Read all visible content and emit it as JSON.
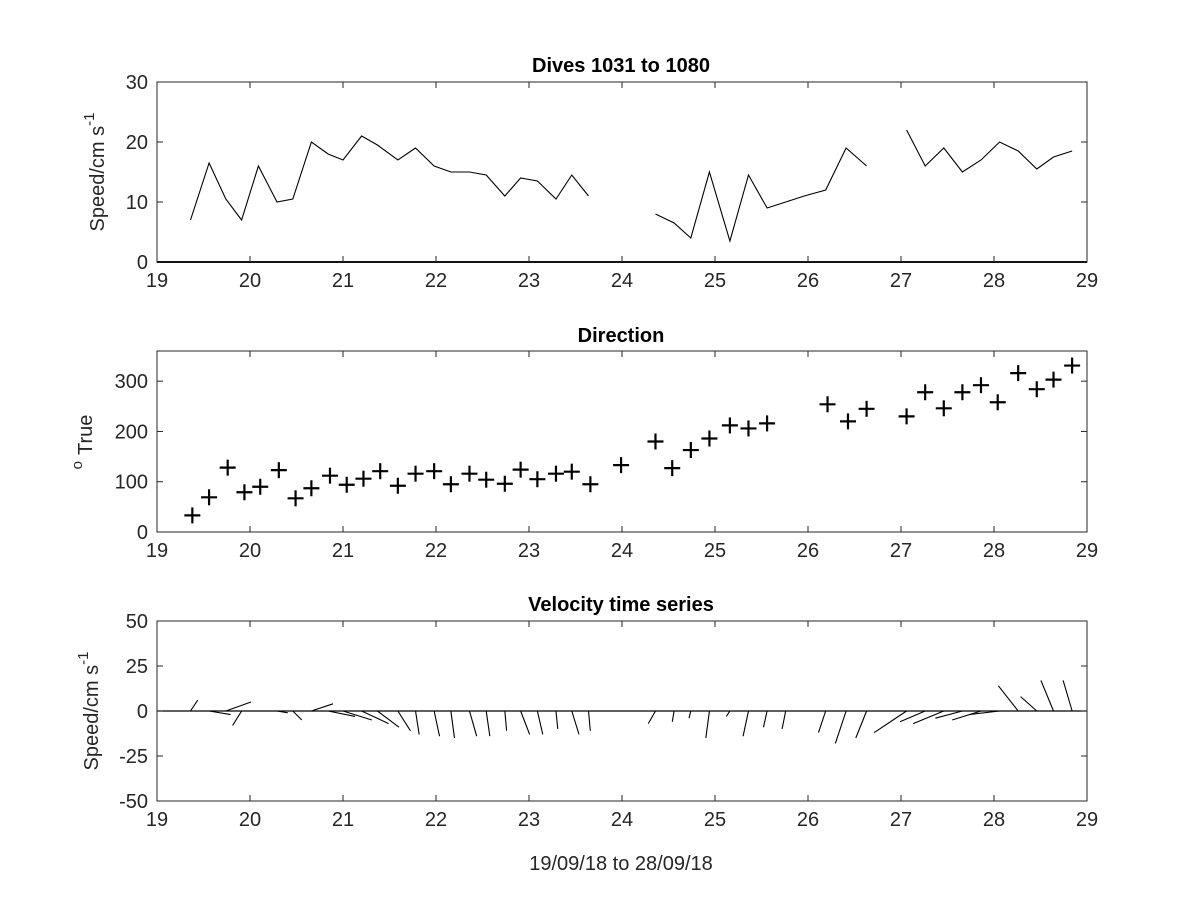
{
  "chart_data": [
    {
      "id": "speed",
      "type": "line",
      "title": "Dives 1031 to 1080",
      "xlabel": "",
      "ylabel": "Speed/cm s",
      "ylabel_sup": "-1",
      "xlim": [
        19,
        29
      ],
      "ylim": [
        0,
        30
      ],
      "xticks": [
        "19",
        "20",
        "21",
        "22",
        "23",
        "24",
        "25",
        "26",
        "27",
        "28",
        "29"
      ],
      "yticks": [
        "0",
        "10",
        "20",
        "30"
      ],
      "zero_line": true,
      "segments": [
        [
          [
            19.36,
            7
          ],
          [
            19.56,
            16.5
          ],
          [
            19.74,
            10.5
          ],
          [
            19.91,
            7
          ],
          [
            20.09,
            16
          ],
          [
            20.29,
            10
          ],
          [
            20.46,
            10.5
          ],
          [
            20.66,
            20
          ],
          [
            20.84,
            18
          ],
          [
            21.0,
            17
          ],
          [
            21.2,
            21
          ],
          [
            21.37,
            19.5
          ],
          [
            21.59,
            17
          ],
          [
            21.78,
            19
          ],
          [
            21.98,
            16
          ],
          [
            22.16,
            15
          ],
          [
            22.36,
            15
          ],
          [
            22.54,
            14.5
          ],
          [
            22.74,
            11
          ],
          [
            22.91,
            14
          ],
          [
            23.09,
            13.5
          ],
          [
            23.29,
            10.5
          ],
          [
            23.46,
            14.5
          ],
          [
            23.64,
            11
          ]
        ],
        [
          [
            24.36,
            8
          ],
          [
            24.56,
            6.5
          ],
          [
            24.74,
            4
          ],
          [
            24.94,
            15
          ],
          [
            25.16,
            3.5
          ],
          [
            25.36,
            14.5
          ],
          [
            25.56,
            9
          ],
          [
            25.76,
            10
          ],
          [
            25.96,
            11
          ],
          [
            26.19,
            12
          ],
          [
            26.41,
            19
          ],
          [
            26.63,
            16
          ]
        ],
        [
          [
            27.06,
            22
          ],
          [
            27.26,
            16
          ],
          [
            27.46,
            19
          ],
          [
            27.66,
            15
          ],
          [
            27.86,
            17
          ],
          [
            28.06,
            20
          ],
          [
            28.26,
            18.5
          ],
          [
            28.46,
            15.5
          ],
          [
            28.64,
            17.5
          ],
          [
            28.84,
            18.5
          ]
        ]
      ]
    },
    {
      "id": "direction",
      "type": "scatter",
      "title": "Direction",
      "xlabel": "",
      "ylabel": "True",
      "ylabel_sup": "o",
      "xlim": [
        19,
        29
      ],
      "ylim": [
        0,
        360
      ],
      "xticks": [
        "19",
        "20",
        "21",
        "22",
        "23",
        "24",
        "25",
        "26",
        "27",
        "28",
        "29"
      ],
      "yticks": [
        "0",
        "100",
        "200",
        "300"
      ],
      "points": [
        [
          19.38,
          33
        ],
        [
          19.56,
          69
        ],
        [
          19.76,
          128
        ],
        [
          19.94,
          79
        ],
        [
          20.11,
          90
        ],
        [
          20.31,
          123
        ],
        [
          20.49,
          67
        ],
        [
          20.66,
          87
        ],
        [
          20.86,
          112
        ],
        [
          21.04,
          94
        ],
        [
          21.22,
          106
        ],
        [
          21.4,
          121
        ],
        [
          21.59,
          92
        ],
        [
          21.78,
          116
        ],
        [
          21.98,
          121
        ],
        [
          22.16,
          95
        ],
        [
          22.36,
          116
        ],
        [
          22.54,
          104
        ],
        [
          22.74,
          96
        ],
        [
          22.91,
          124
        ],
        [
          23.09,
          105
        ],
        [
          23.29,
          116
        ],
        [
          23.46,
          120
        ],
        [
          23.66,
          95
        ],
        [
          23.99,
          133
        ],
        [
          24.36,
          180
        ],
        [
          24.54,
          127
        ],
        [
          24.74,
          163
        ],
        [
          24.94,
          186
        ],
        [
          25.16,
          212
        ],
        [
          25.36,
          206
        ],
        [
          25.56,
          216
        ],
        [
          26.21,
          254
        ],
        [
          26.43,
          220
        ],
        [
          26.63,
          245
        ],
        [
          27.06,
          230
        ],
        [
          27.26,
          278
        ],
        [
          27.46,
          246
        ],
        [
          27.66,
          278
        ],
        [
          27.86,
          292
        ],
        [
          28.04,
          258
        ],
        [
          28.26,
          316
        ],
        [
          28.46,
          284
        ],
        [
          28.64,
          303
        ],
        [
          28.84,
          331
        ]
      ]
    },
    {
      "id": "velocity",
      "type": "line",
      "subtype": "stick",
      "title": "Velocity time series",
      "xlabel": "19/09/18 to 28/09/18",
      "ylabel": "Speed/cm s",
      "ylabel_sup": "-1",
      "xlim": [
        19,
        29
      ],
      "ylim": [
        -50,
        50
      ],
      "xticks": [
        "19",
        "20",
        "21",
        "22",
        "23",
        "24",
        "25",
        "26",
        "27",
        "28",
        "29"
      ],
      "yticks": [
        "-50",
        "-25",
        "0",
        "25",
        "50"
      ],
      "zero_line": true,
      "sticks": [
        [
          19.36,
          4,
          6
        ],
        [
          19.56,
          12,
          -2
        ],
        [
          19.74,
          14,
          5
        ],
        [
          19.91,
          -5,
          -8
        ],
        [
          20.09,
          14,
          0
        ],
        [
          20.29,
          6,
          -1
        ],
        [
          20.46,
          5,
          -5
        ],
        [
          20.66,
          12,
          4
        ],
        [
          20.84,
          15,
          -3
        ],
        [
          21.0,
          16,
          -5
        ],
        [
          21.2,
          15,
          -7
        ],
        [
          21.37,
          12,
          -9
        ],
        [
          21.59,
          7,
          -11
        ],
        [
          21.78,
          2,
          -13
        ],
        [
          21.98,
          3,
          -14
        ],
        [
          22.16,
          2,
          -15
        ],
        [
          22.36,
          4,
          -14
        ],
        [
          22.54,
          2,
          -14
        ],
        [
          22.74,
          1,
          -11
        ],
        [
          22.91,
          5,
          -13
        ],
        [
          23.09,
          3,
          -13
        ],
        [
          23.29,
          1,
          -10
        ],
        [
          23.46,
          4,
          -13
        ],
        [
          23.64,
          1,
          -11
        ],
        [
          24.36,
          -4,
          -7
        ],
        [
          24.56,
          -1,
          -6
        ],
        [
          24.74,
          -1,
          -4
        ],
        [
          24.94,
          -2,
          -15
        ],
        [
          25.16,
          -2,
          -3
        ],
        [
          25.36,
          -3,
          -14
        ],
        [
          25.56,
          -2,
          -9
        ],
        [
          25.76,
          -2,
          -10
        ],
        [
          26.19,
          -4,
          -12
        ],
        [
          26.41,
          -6,
          -18
        ],
        [
          26.63,
          -6,
          -15
        ],
        [
          27.06,
          -18,
          -12
        ],
        [
          27.26,
          -14,
          -6
        ],
        [
          27.46,
          -17,
          -7
        ],
        [
          27.66,
          -15,
          -4
        ],
        [
          27.86,
          -16,
          -5
        ],
        [
          28.06,
          -17,
          -2
        ],
        [
          28.26,
          -11,
          14
        ],
        [
          28.46,
          -9,
          8
        ],
        [
          28.64,
          -7,
          17
        ],
        [
          28.84,
          -5,
          17
        ]
      ]
    }
  ]
}
